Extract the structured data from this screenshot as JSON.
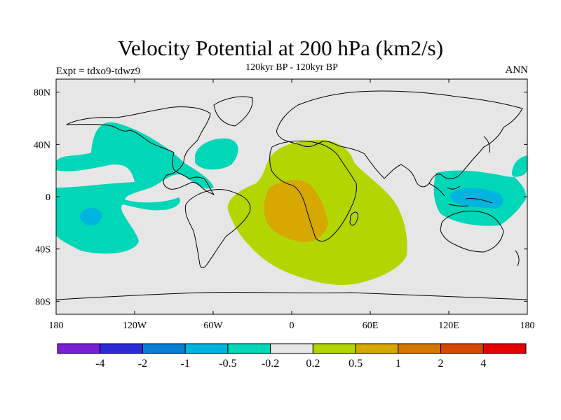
{
  "title": "Velocity Potential at 200 hPa (km2/s)",
  "subtitle": "120kyr BP - 120kyr BP",
  "experiment_label": "Expt = tdxo9-tdwz9",
  "season_label": "ANN",
  "colors": {
    "background": "#e6e6e6",
    "outline": "#000000"
  },
  "chart_data": {
    "type": "heatmap",
    "projection": "cylindrical equidistant, centered on 0",
    "xlim": [
      -180,
      180
    ],
    "ylim": [
      -90,
      90
    ],
    "x_ticks": [
      {
        "value": -180,
        "label": "180"
      },
      {
        "value": -120,
        "label": "120W"
      },
      {
        "value": -60,
        "label": "60W"
      },
      {
        "value": 0,
        "label": "0"
      },
      {
        "value": 60,
        "label": "60E"
      },
      {
        "value": 120,
        "label": "120E"
      },
      {
        "value": 180,
        "label": "180"
      }
    ],
    "y_ticks": [
      {
        "value": 80,
        "label": "80N"
      },
      {
        "value": 40,
        "label": "40N"
      },
      {
        "value": 0,
        "label": "0"
      },
      {
        "value": -40,
        "label": "40S"
      },
      {
        "value": -80,
        "label": "80S"
      }
    ],
    "colorbar": {
      "colors": [
        "#7b1fd6",
        "#2b2bd6",
        "#0a7fd6",
        "#00b4e0",
        "#00d6b8",
        "#e6e6e6",
        "#b4d600",
        "#d6a800",
        "#d67800",
        "#d64a00",
        "#e60000"
      ],
      "boundaries": [
        "-4",
        "-2",
        "-1",
        "-0.5",
        "-0.2",
        "0.2",
        "0.5",
        "1",
        "2",
        "4"
      ]
    },
    "regions": [
      {
        "name": "Negative anomaly, North America / NE Pacific",
        "level": "-0.5 to -0.2",
        "lon": [
          -165,
          -90
        ],
        "lat": [
          -20,
          55
        ]
      },
      {
        "name": "Negative anomaly, central Pacific",
        "level": "-0.5 to -0.2",
        "lon": [
          -180,
          -90
        ],
        "lat": [
          -45,
          10
        ]
      },
      {
        "name": "Negative core, central Pacific",
        "level": "-1 to -0.5",
        "lon": [
          -162,
          -148
        ],
        "lat": [
          -22,
          -12
        ]
      },
      {
        "name": "Negative anomaly, North Atlantic",
        "level": "-0.5 to -0.2",
        "lon": [
          -55,
          -35
        ],
        "lat": [
          20,
          45
        ]
      },
      {
        "name": "Negative anomaly, Maritime Continent",
        "level": "-0.5 to -0.2",
        "lon": [
          100,
          180
        ],
        "lat": [
          -22,
          20
        ]
      },
      {
        "name": "Negative core, Maritime Continent",
        "level": "-1 to -0.5",
        "lon": [
          122,
          160
        ],
        "lat": [
          -12,
          5
        ]
      },
      {
        "name": "Positive anomaly, Atlantic / Africa",
        "level": "0.2 to 0.5",
        "lon": [
          -50,
          90
        ],
        "lat": [
          -68,
          42
        ]
      },
      {
        "name": "Positive core, South Atlantic / Africa",
        "level": "0.5 to 1",
        "lon": [
          -25,
          30
        ],
        "lat": [
          -35,
          12
        ]
      }
    ]
  }
}
